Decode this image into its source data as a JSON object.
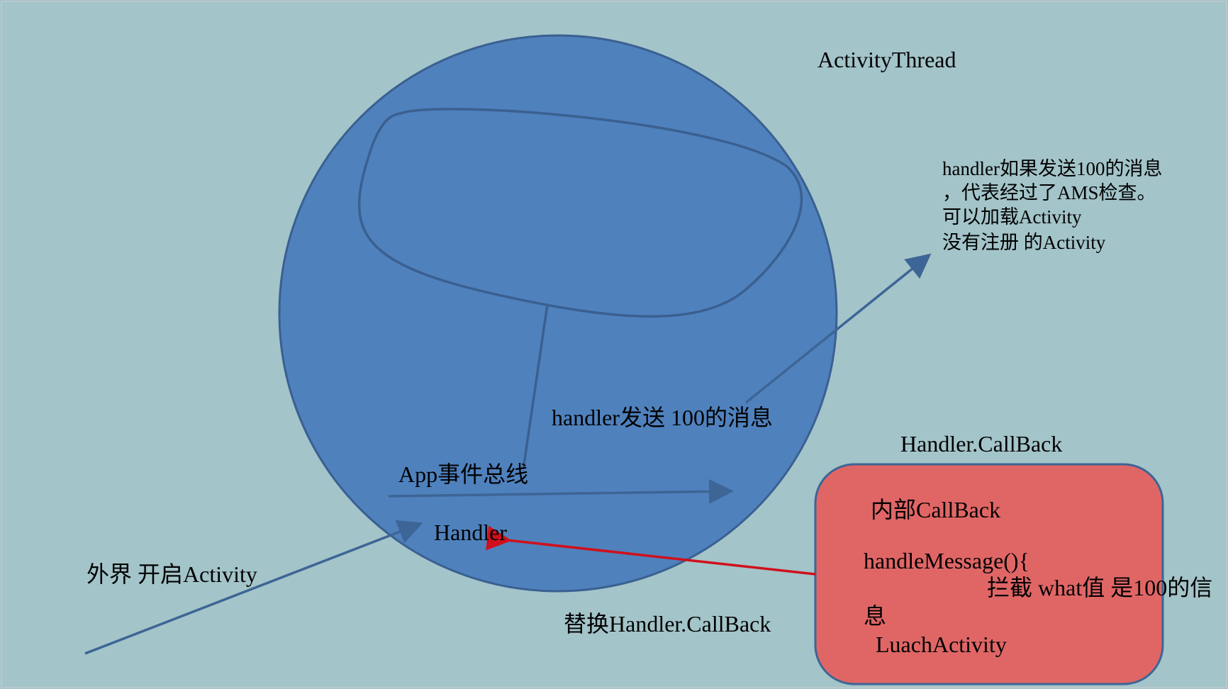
{
  "colors": {
    "background": "#a3c4c9",
    "circle_fill": "#4f81bd",
    "circle_stroke": "#3a6090",
    "arrow_blue": "#3d6595",
    "arrow_red": "#d0101c",
    "callback_box_fill": "#e06666",
    "callback_box_stroke": "#3d6595",
    "replace_label": "#e06666"
  },
  "diagram": {
    "activity_thread_label": "ActivityThread",
    "handler_send_label": "handler发送 100的消息",
    "app_event_bus_label": "App事件总线",
    "handler_label": "Handler",
    "outside_start_label": "外界 开启Activity",
    "callback_title": "Handler.CallBack",
    "replace_label": "替换Handler.CallBack",
    "note_lines": [
      "handler如果发送100的消息",
      "，代表经过了AMS检查。",
      "可以加载Activity",
      "没有注册 的Activity"
    ],
    "callback_box": {
      "line1": "内部CallBack",
      "line2": "handleMessage(){",
      "line3": "拦截 what值 是100的信",
      "line4": "息",
      "line5": "LuachActivity"
    }
  }
}
